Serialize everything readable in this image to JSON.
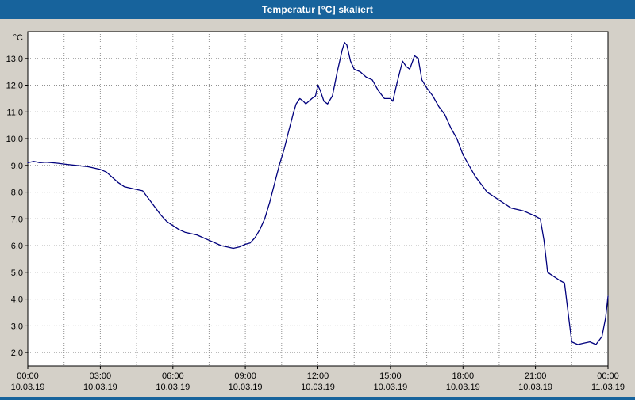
{
  "window": {
    "title": "Temperatur [°C] skaliert"
  },
  "colors": {
    "titlebar": "#17639c",
    "background": "#d4d0c8",
    "plot_background": "#ffffff",
    "line": "#00007d",
    "grid": "#909090",
    "frame": "#000000",
    "bottom_strip": "#17639c"
  },
  "chart_data": {
    "type": "line",
    "title": "Temperatur [°C] skaliert",
    "y_unit_label": "°C",
    "xlim": [
      0,
      24
    ],
    "ylim": [
      1.5,
      14.0
    ],
    "grid": {
      "x_step": 1.5,
      "y_step": 1.0,
      "style": "dotted"
    },
    "x_ticks": [
      0,
      3,
      6,
      9,
      12,
      15,
      18,
      21,
      24
    ],
    "x_tick_labels": [
      "00:00",
      "03:00",
      "06:00",
      "09:00",
      "12:00",
      "15:00",
      "18:00",
      "21:00",
      "00:00"
    ],
    "x_tick_dates": [
      "10.03.19",
      "10.03.19",
      "10.03.19",
      "10.03.19",
      "10.03.19",
      "10.03.19",
      "10.03.19",
      "10.03.19",
      "11.03.19"
    ],
    "y_ticks": [
      2,
      3,
      4,
      5,
      6,
      7,
      8,
      9,
      10,
      11,
      12,
      13
    ],
    "y_tick_labels": [
      "2,0",
      "3,0",
      "4,0",
      "5,0",
      "6,0",
      "7,0",
      "8,0",
      "9,0",
      "10,0",
      "11,0",
      "12,0",
      "13,0"
    ],
    "legend": "none",
    "series": [
      {
        "name": "Temperatur [°C]",
        "x": [
          0,
          0.25,
          0.5,
          0.75,
          1,
          1.25,
          1.5,
          2,
          2.5,
          3,
          3.25,
          3.5,
          3.75,
          4,
          4.25,
          4.5,
          4.75,
          5,
          5.25,
          5.5,
          5.75,
          6,
          6.25,
          6.5,
          7,
          7.25,
          7.5,
          8,
          8.25,
          8.5,
          8.75,
          9,
          9.2,
          9.4,
          9.6,
          9.8,
          10,
          10.2,
          10.4,
          10.6,
          10.8,
          11,
          11.1,
          11.25,
          11.4,
          11.5,
          11.75,
          11.9,
          12,
          12.1,
          12.25,
          12.4,
          12.6,
          12.8,
          13,
          13.1,
          13.2,
          13.35,
          13.5,
          13.75,
          14,
          14.25,
          14.5,
          14.75,
          15,
          15.1,
          15.25,
          15.5,
          15.65,
          15.8,
          16,
          16.15,
          16.3,
          16.5,
          16.75,
          17,
          17.25,
          17.5,
          17.75,
          18,
          18.25,
          18.5,
          18.75,
          19,
          19.25,
          19.5,
          20,
          20.5,
          21,
          21.2,
          21.35,
          21.5,
          21.75,
          22,
          22.2,
          22.35,
          22.5,
          22.75,
          23,
          23.25,
          23.5,
          23.75,
          23.9,
          24
        ],
        "y": [
          9.1,
          9.15,
          9.1,
          9.12,
          9.1,
          9.08,
          9.05,
          9.0,
          8.95,
          8.85,
          8.75,
          8.55,
          8.35,
          8.2,
          8.15,
          8.1,
          8.05,
          7.75,
          7.45,
          7.15,
          6.9,
          6.75,
          6.6,
          6.5,
          6.4,
          6.3,
          6.2,
          6.0,
          5.95,
          5.9,
          5.95,
          6.05,
          6.1,
          6.3,
          6.6,
          7.0,
          7.6,
          8.3,
          9.0,
          9.6,
          10.3,
          11.0,
          11.3,
          11.5,
          11.4,
          11.3,
          11.5,
          11.6,
          12.0,
          11.8,
          11.4,
          11.3,
          11.6,
          12.5,
          13.3,
          13.6,
          13.5,
          12.9,
          12.6,
          12.5,
          12.3,
          12.2,
          11.8,
          11.5,
          11.5,
          11.4,
          12.0,
          12.9,
          12.7,
          12.6,
          13.1,
          13.0,
          12.2,
          11.9,
          11.6,
          11.2,
          10.9,
          10.4,
          10.0,
          9.4,
          9.0,
          8.6,
          8.3,
          8.0,
          7.85,
          7.7,
          7.4,
          7.3,
          7.1,
          7.0,
          6.2,
          5.0,
          4.85,
          4.7,
          4.6,
          3.5,
          2.4,
          2.3,
          2.35,
          2.4,
          2.3,
          2.6,
          3.3,
          4.1
        ]
      }
    ]
  }
}
